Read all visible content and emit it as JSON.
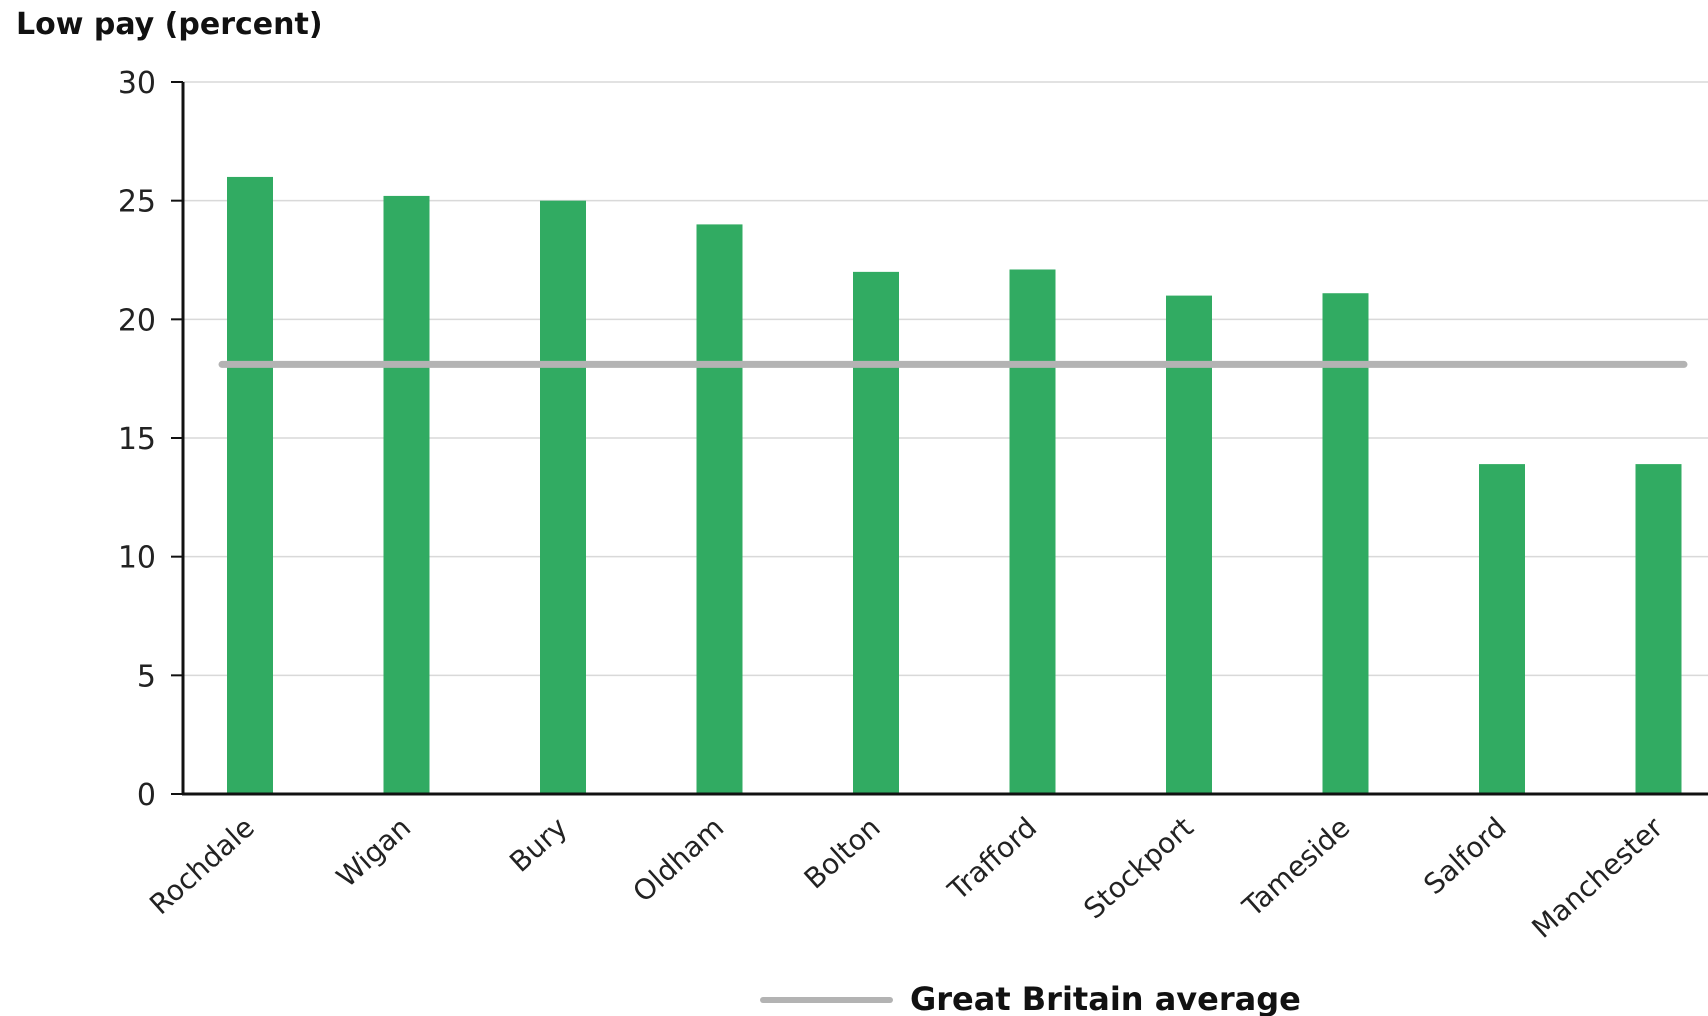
{
  "chart_data": {
    "type": "bar",
    "ylabel": "Low pay (percent)",
    "xlabel": "",
    "categories": [
      "Rochdale",
      "Wigan",
      "Bury",
      "Oldham",
      "Bolton",
      "Trafford",
      "Stockport",
      "Tameside",
      "Salford",
      "Manchester"
    ],
    "values": [
      26,
      25.2,
      25,
      24,
      22,
      22.1,
      21,
      21.1,
      13.9,
      13.9
    ],
    "ylim": [
      0,
      30
    ],
    "yticks": [
      0,
      5,
      10,
      15,
      20,
      25,
      30
    ],
    "grid": true,
    "reference_line": {
      "name": "Great Britain average",
      "value": 18.1
    },
    "legend_position": "bottom",
    "colors": {
      "bar": "#31ab62",
      "reference_line": "#b3b3b3",
      "grid": "#d9d9d9",
      "axis": "#111111"
    }
  }
}
